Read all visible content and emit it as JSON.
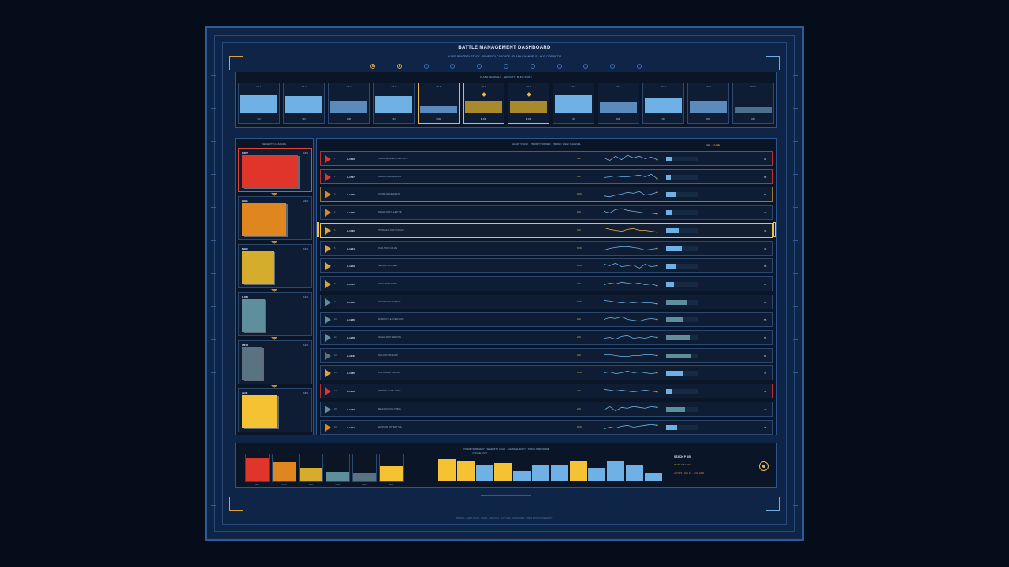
{
  "header": {
    "title": "BATTLE MANAGEMENT DASHBOARD",
    "subtitle": "ALERT PRIORITY STACK · SEVERITY CASCADE · FLASH CHANNELS · HUD CORRIDOR"
  },
  "colors": {
    "critical": "#e0352b",
    "high": "#e0861f",
    "med": "#d6ac2c",
    "low": "#5f8f9c",
    "info": "#5a7382",
    "aux": "#f4c232",
    "accent_blue": "#6fb1e4",
    "gold": "#e8b84a"
  },
  "indicator_dots": [
    {
      "on": true
    },
    {
      "on": true
    },
    {
      "on": false
    },
    {
      "on": false
    },
    {
      "on": false
    },
    {
      "on": false
    },
    {
      "on": false
    },
    {
      "on": false
    },
    {
      "on": false
    },
    {
      "on": false
    },
    {
      "on": false
    }
  ],
  "flash_strip": {
    "title": "FLASH CHANNELS · LED DUTY / BLINK STATE",
    "cards": [
      {
        "label": "CH-1",
        "level": 0.6,
        "value": "ON",
        "color": "#6fb1e4",
        "selected": false
      },
      {
        "label": "CH-2",
        "level": 0.55,
        "value": "ON",
        "color": "#6fb1e4",
        "selected": false
      },
      {
        "label": "CH-3",
        "level": 0.4,
        "value": "DIM",
        "color": "#5b8bbc",
        "selected": false
      },
      {
        "label": "CH-4",
        "level": 0.55,
        "value": "ON",
        "color": "#6fb1e4",
        "selected": false
      },
      {
        "label": "CH-5",
        "level": 0.25,
        "value": "LOW",
        "color": "#5b8bbc",
        "selected": true
      },
      {
        "label": "CH-6",
        "level": 0.4,
        "value": "BLINK",
        "color": "#a88a2c",
        "selected": true,
        "flag": true
      },
      {
        "label": "CH-7",
        "level": 0.4,
        "value": "BLINK",
        "color": "#a88a2c",
        "selected": true,
        "flag": true
      },
      {
        "label": "CH-8",
        "level": 0.6,
        "value": "ON",
        "color": "#6fb1e4",
        "selected": false
      },
      {
        "label": "CH-9",
        "level": 0.35,
        "value": "DIM",
        "color": "#5b8bbc",
        "selected": false
      },
      {
        "label": "CH-10",
        "level": 0.5,
        "value": "ON",
        "color": "#6fb1e4",
        "selected": false
      },
      {
        "label": "CH-11",
        "level": 0.4,
        "value": "DIM",
        "color": "#5b8bbc",
        "selected": false
      },
      {
        "label": "CH-12",
        "level": 0.2,
        "value": "OFF",
        "color": "#4e6e8e",
        "selected": false
      }
    ]
  },
  "severity": {
    "title": "SEVERITY CASCADE",
    "cards": [
      {
        "name": "CRIT",
        "count": "18%",
        "width": 0.82,
        "color": "#e0352b",
        "selected": true
      },
      {
        "name": "HIGH",
        "count": "22%",
        "width": 0.65,
        "color": "#e0861f",
        "selected": false
      },
      {
        "name": "MED",
        "count": "16%",
        "width": 0.47,
        "color": "#d6ac2c",
        "selected": false
      },
      {
        "name": "LOW",
        "count": "14%",
        "width": 0.34,
        "color": "#5f8f9c",
        "selected": false
      },
      {
        "name": "INFO",
        "count": "12%",
        "width": 0.3,
        "color": "#5a7382",
        "selected": false
      },
      {
        "name": "AUX",
        "count": "18%",
        "width": 0.52,
        "color": "#f4c232",
        "selected": false
      }
    ]
  },
  "alerts": {
    "title": "ALERT STACK · PRIORITY ORDER · TREND / AGE / CHANNEL",
    "header_right": "AGE · 4 LINE",
    "rows": [
      {
        "rank": "1",
        "id": "A-1843",
        "desc": "HARDLINE BREACH SECTOR 7",
        "state": "ACK",
        "tri": "#e0352b",
        "border": "crit",
        "progress": 0.2,
        "score": "91",
        "trend": [
          6,
          3,
          8,
          4,
          9,
          6,
          8,
          5,
          7,
          4
        ]
      },
      {
        "rank": "2",
        "id": "A-1527",
        "desc": "RADAR INTERFERENCE",
        "state": "ACK",
        "tri": "#e0352b",
        "border": "crit",
        "progress": 0.15,
        "score": "88",
        "trend": [
          4,
          5,
          6,
          5,
          5,
          6,
          7,
          5,
          8,
          3
        ]
      },
      {
        "rank": "3",
        "id": "A-1229",
        "desc": "COMMS DEGRADED B",
        "state": "NEW",
        "tri": "#e0861f",
        "border": "high",
        "progress": 0.3,
        "score": "84",
        "trend": [
          3,
          2,
          4,
          5,
          7,
          6,
          8,
          4,
          5,
          7
        ]
      },
      {
        "rank": "4",
        "id": "A-1016",
        "desc": "RANGE FAULT ALERT 9B",
        "state": "ACK",
        "tri": "#e0861f",
        "border": "none",
        "progress": 0.2,
        "score": "79",
        "trend": [
          6,
          4,
          8,
          9,
          7,
          6,
          5,
          4,
          4,
          3
        ]
      },
      {
        "rank": "5",
        "id": "A-1395",
        "desc": "HYDRAULIC SLIP CONTACT",
        "state": "ACK",
        "tri": "#e0a23a",
        "border": "sel",
        "progress": 0.4,
        "score": "76",
        "trend": [
          8,
          6,
          5,
          4,
          6,
          7,
          5,
          5,
          4,
          3
        ]
      },
      {
        "rank": "6",
        "id": "A-1244",
        "desc": "FUEL STATE VALVE",
        "state": "NEW",
        "tri": "#e0a23a",
        "border": "none",
        "progress": 0.5,
        "score": "72",
        "trend": [
          3,
          5,
          6,
          7,
          7,
          6,
          5,
          3,
          4,
          5
        ]
      },
      {
        "rank": "7",
        "id": "A-1253",
        "desc": "SENSOR SPLIT SEQ",
        "state": "NEW",
        "tri": "#e0a23a",
        "border": "none",
        "progress": 0.3,
        "score": "68",
        "trend": [
          7,
          5,
          8,
          4,
          5,
          6,
          2,
          7,
          4,
          5
        ]
      },
      {
        "rank": "8",
        "id": "A-1465",
        "desc": "SYNC DRIFT ALPHA",
        "state": "ACK",
        "tri": "#e0a23a",
        "border": "none",
        "progress": 0.25,
        "score": "65",
        "trend": [
          4,
          6,
          5,
          7,
          6,
          5,
          6,
          4,
          5,
          3
        ]
      },
      {
        "rank": "9",
        "id": "A-1052",
        "desc": "NAV REF RECALIBRATE",
        "state": "NEW",
        "tri": "#5f8f9c",
        "border": "none",
        "progress": 0.65,
        "score": "61",
        "trend": [
          7,
          6,
          5,
          4,
          5,
          4,
          5,
          4,
          4,
          3
        ]
      },
      {
        "rank": "10",
        "id": "A-1236",
        "desc": "MISSION TILE OVERFLOW",
        "state": "ACK",
        "tri": "#5f8f9c",
        "border": "none",
        "progress": 0.55,
        "score": "58",
        "trend": [
          5,
          7,
          6,
          8,
          5,
          4,
          3,
          5,
          6,
          5
        ]
      },
      {
        "rank": "11",
        "id": "A-1278",
        "desc": "SIGNAL PATH REROUTE",
        "state": "ACK",
        "tri": "#5f8f9c",
        "border": "none",
        "progress": 0.75,
        "score": "54",
        "trend": [
          4,
          5,
          3,
          6,
          7,
          4,
          5,
          4,
          6,
          5
        ]
      },
      {
        "rank": "12",
        "id": "A-1118",
        "desc": "PAYLOAD SAFE ARM",
        "state": "ACK",
        "tri": "#5a7382",
        "border": "none",
        "progress": 0.8,
        "score": "51",
        "trend": [
          6,
          6,
          5,
          4,
          4,
          5,
          5,
          6,
          6,
          5
        ]
      },
      {
        "rank": "13",
        "id": "A-1735",
        "desc": "LINK BUDGET MARGIN",
        "state": "NEW",
        "tri": "#e0a23a",
        "border": "none",
        "progress": 0.55,
        "score": "47",
        "trend": [
          5,
          6,
          4,
          5,
          7,
          5,
          6,
          5,
          4,
          5
        ]
      },
      {
        "rank": "14",
        "id": "A-1853",
        "desc": "THERMAL PANEL DRIFT",
        "state": "ACK",
        "tri": "#e0352b",
        "border": "crit",
        "progress": 0.2,
        "score": "43",
        "trend": [
          7,
          6,
          5,
          6,
          5,
          4,
          5,
          6,
          5,
          4
        ]
      },
      {
        "rank": "15",
        "id": "A-1477",
        "desc": "BEACON PULSE TIMING",
        "state": "ACK",
        "tri": "#5f8f9c",
        "border": "none",
        "progress": 0.6,
        "score": "40",
        "trend": [
          4,
          8,
          3,
          7,
          6,
          8,
          7,
          6,
          8,
          7
        ]
      },
      {
        "rank": "16",
        "id": "A-1794",
        "desc": "EMISSION PATTERN TAIL",
        "state": "NEW",
        "tri": "#e0861f",
        "border": "none",
        "progress": 0.35,
        "score": "38",
        "trend": [
          3,
          5,
          4,
          6,
          7,
          5,
          6,
          7,
          8,
          7
        ]
      }
    ]
  },
  "bottom": {
    "title": "HYBRID SUMMARY · SEVERITY LOAD · CHANNEL DUTY · STACK PRESSURE",
    "hist_caption": "CHANNEL DUTY",
    "sev_cards": [
      {
        "label": "CRIT",
        "level": 0.85,
        "color": "#e0352b"
      },
      {
        "label": "HIGH",
        "level": 0.7,
        "color": "#e0861f"
      },
      {
        "label": "MED",
        "level": 0.5,
        "color": "#d6ac2c"
      },
      {
        "label": "LOW",
        "level": 0.35,
        "color": "#5f8f9c"
      },
      {
        "label": "INFO",
        "level": 0.3,
        "color": "#5a7382"
      },
      {
        "label": "AUX",
        "level": 0.55,
        "color": "#f4c232"
      }
    ],
    "histogram": [
      {
        "level": 0.95,
        "color": "#f4c232"
      },
      {
        "level": 0.85,
        "color": "#f4c232"
      },
      {
        "level": 0.72,
        "color": "#6fb1e4"
      },
      {
        "level": 0.8,
        "color": "#f4c232"
      },
      {
        "level": 0.45,
        "color": "#6fb1e4"
      },
      {
        "level": 0.72,
        "color": "#6fb1e4"
      },
      {
        "level": 0.68,
        "color": "#6fb1e4"
      },
      {
        "level": 0.9,
        "color": "#f4c232"
      },
      {
        "level": 0.58,
        "color": "#6fb1e4"
      },
      {
        "level": 0.85,
        "color": "#6fb1e4"
      },
      {
        "level": 0.7,
        "color": "#6fb1e4"
      },
      {
        "level": 0.35,
        "color": "#6fb1e4"
      }
    ],
    "stats": {
      "stack": "STACK P 4/5",
      "duty": "DUTY 0.62 SEL",
      "alert": "ACT 15 · HID 16 · LOC 22 D"
    }
  },
  "footer": {
    "text": "BM-2026 · ALERT STACK · HUD-4 · GRID 6×12 · DUTY 0.62 · CORRIDOR 4 · MODE PRIORITY/SEVERITY"
  }
}
